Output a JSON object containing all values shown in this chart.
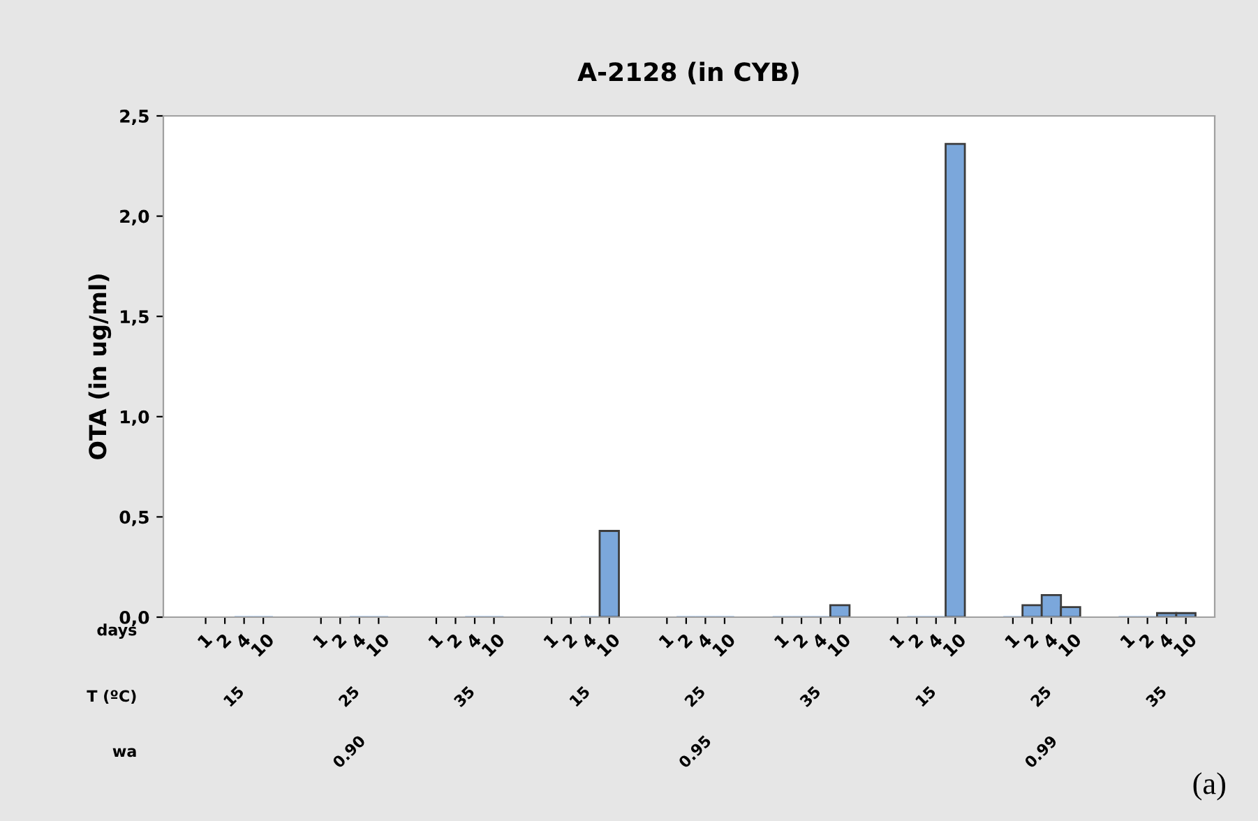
{
  "chart_data": {
    "type": "bar",
    "title": "A-2128 (in CYB)",
    "ylabel": "OTA (in ug/ml)",
    "categories": [
      "1",
      "2",
      "4",
      "10",
      null,
      null,
      "1",
      "2",
      "4",
      "10",
      null,
      null,
      "1",
      "2",
      "4",
      "10",
      null,
      null,
      "1",
      "2",
      "4",
      "10",
      null,
      null,
      "1",
      "2",
      "4",
      "10",
      null,
      null,
      "1",
      "2",
      "4",
      "10",
      null,
      null,
      "1",
      "2",
      "4",
      "10",
      null,
      null,
      "1",
      "2",
      "4",
      "10",
      null,
      null,
      "1",
      "2",
      "4",
      "10"
    ],
    "values": [
      null,
      null,
      0,
      0,
      null,
      null,
      null,
      null,
      0,
      0,
      null,
      null,
      null,
      null,
      0,
      0,
      null,
      null,
      null,
      null,
      0,
      0.43,
      null,
      null,
      null,
      0,
      0,
      0,
      null,
      null,
      0,
      0,
      0,
      0.06,
      null,
      null,
      null,
      0,
      0,
      2.36,
      null,
      null,
      0,
      0.06,
      0.11,
      0.05,
      null,
      null,
      0,
      0,
      0.02,
      0.02
    ],
    "color": "#7ba7db",
    "ylim": [
      0,
      2.5
    ],
    "yticks": [
      {
        "value": 0,
        "label": "0,0"
      },
      {
        "value": 0.5,
        "label": "0,5"
      },
      {
        "value": 1.0,
        "label": "1,0"
      },
      {
        "value": 1.5,
        "label": "1,5"
      },
      {
        "value": 2.0,
        "label": "2,0"
      },
      {
        "value": 2.5,
        "label": "2,5"
      }
    ],
    "annotations": [
      "days",
      "T (ºC)",
      "wa",
      "15",
      "25",
      "35",
      "15",
      "25",
      "35",
      "15",
      "25",
      "35",
      "0.90",
      "0.95",
      "0.99",
      "(a)"
    ],
    "grid": false,
    "legend": false
  }
}
